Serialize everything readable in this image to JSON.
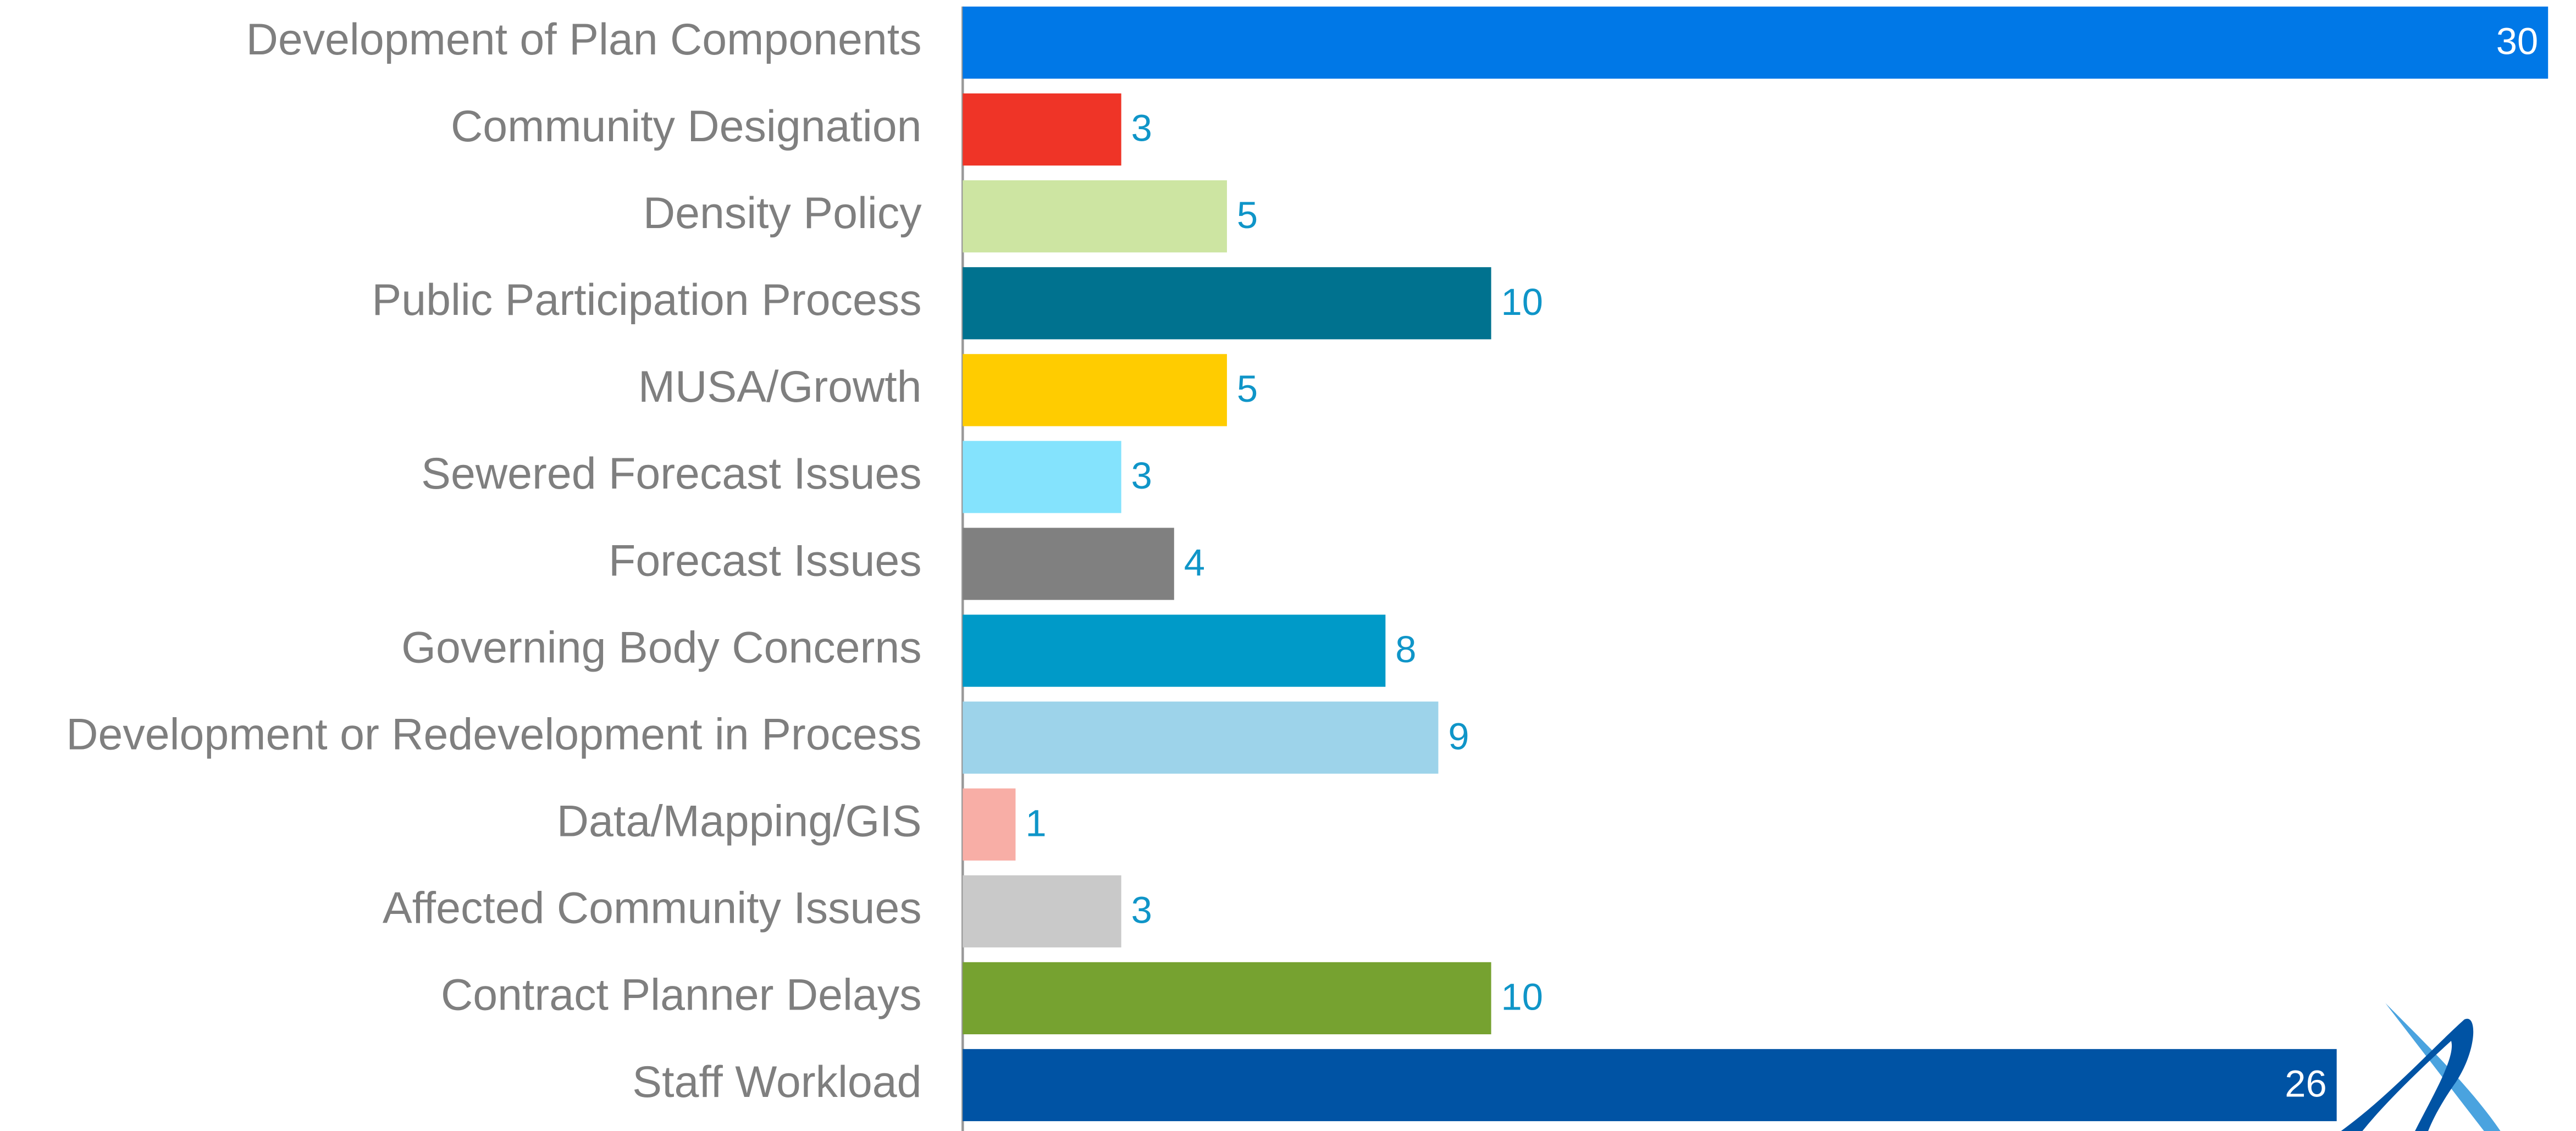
{
  "chart_data": {
    "type": "bar",
    "orientation": "horizontal",
    "categories": [
      "Development of Plan Components",
      "Community Designation",
      "Density Policy",
      "Public Participation Process",
      "MUSA/Growth",
      "Sewered Forecast Issues",
      "Forecast Issues",
      "Governing Body Concerns",
      "Development or Redevelopment in Process",
      "Data/Mapping/GIS",
      "Affected Community Issues",
      "Contract Planner Delays",
      "Staff Workload"
    ],
    "values": [
      30,
      3,
      5,
      10,
      5,
      3,
      4,
      8,
      9,
      1,
      3,
      10,
      26
    ],
    "colors": [
      "#0078e7",
      "#ef3427",
      "#cde5a2",
      "#00728f",
      "#ffcc00",
      "#84e3fd",
      "#808080",
      "#009ac8",
      "#9dd3ea",
      "#f8aea6",
      "#c9c9c9",
      "#76a230",
      "#0053a4"
    ],
    "xlim": [
      0,
      30
    ]
  }
}
